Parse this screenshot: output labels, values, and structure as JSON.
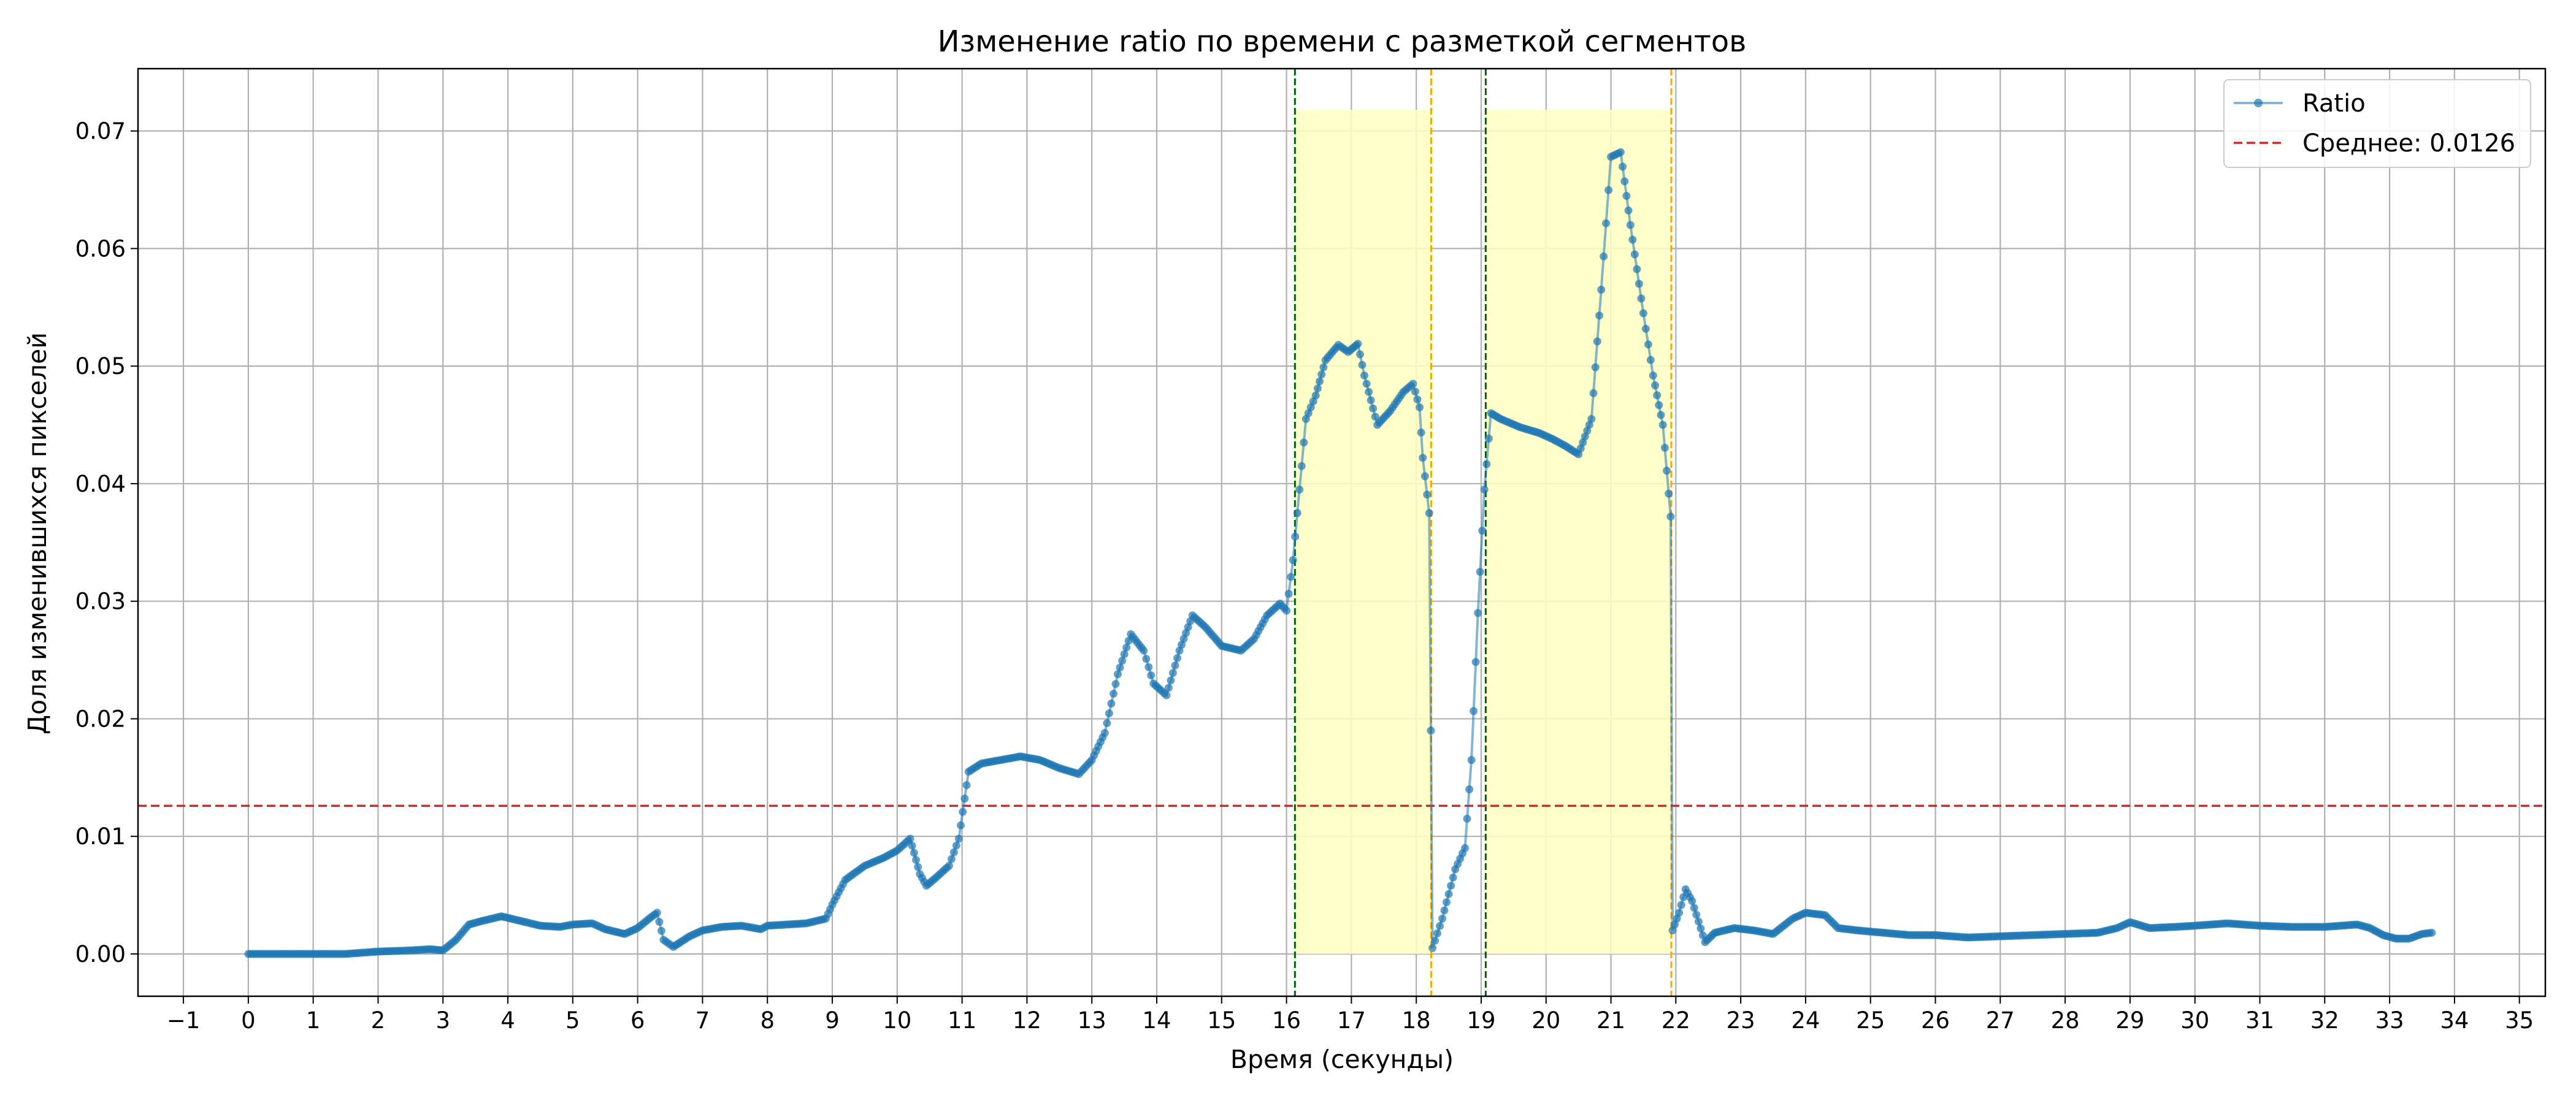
{
  "chart_data": {
    "type": "line",
    "title": "Изменение ratio по времени с разметкой сегментов",
    "xlabel": "Время (секунды)",
    "ylabel": "Доля изменившихся пикселей",
    "xlim": [
      -1.7,
      35.4
    ],
    "ylim": [
      -0.0036,
      0.0753
    ],
    "xticks": [
      -1,
      0,
      1,
      2,
      3,
      4,
      5,
      6,
      7,
      8,
      9,
      10,
      11,
      12,
      13,
      14,
      15,
      16,
      17,
      18,
      19,
      20,
      21,
      22,
      23,
      24,
      25,
      26,
      27,
      28,
      29,
      30,
      31,
      32,
      33,
      34,
      35
    ],
    "xtick_labels": [
      "−1",
      "0",
      "1",
      "2",
      "3",
      "4",
      "5",
      "6",
      "7",
      "8",
      "9",
      "10",
      "11",
      "12",
      "13",
      "14",
      "15",
      "16",
      "17",
      "18",
      "19",
      "20",
      "21",
      "22",
      "23",
      "24",
      "25",
      "26",
      "27",
      "28",
      "29",
      "30",
      "31",
      "32",
      "33",
      "34",
      "35"
    ],
    "yticks": [
      0.0,
      0.01,
      0.02,
      0.03,
      0.04,
      0.05,
      0.06,
      0.07
    ],
    "ytick_labels": [
      "0.00",
      "0.01",
      "0.02",
      "0.03",
      "0.04",
      "0.05",
      "0.06",
      "0.07"
    ],
    "grid": true,
    "legend_position": "top-right",
    "mean_line": {
      "name": "Среднее: 0.0126",
      "value": 0.0126,
      "color": "#d62728",
      "style": "dashed"
    },
    "segments": [
      {
        "start": 16.13,
        "end": 18.23,
        "ymax": 0.0718,
        "start_line_color": "#006400",
        "end_line_color": "#ffa500"
      },
      {
        "start": 19.07,
        "end": 21.93,
        "ymax": 0.0718,
        "start_line_color": "#006400",
        "end_line_color": "#ffa500"
      }
    ],
    "segment_fill_color": "#ffffc0",
    "series": [
      {
        "name": "Ratio",
        "color": "#1f77b4",
        "marker": "circle",
        "points": [
          [
            0.0,
            0.0
          ],
          [
            1.0,
            0.0
          ],
          [
            1.5,
            0.0
          ],
          [
            2.0,
            0.0002
          ],
          [
            2.5,
            0.0003
          ],
          [
            2.8,
            0.0004
          ],
          [
            3.0,
            0.0003
          ],
          [
            3.2,
            0.0012
          ],
          [
            3.4,
            0.0025
          ],
          [
            3.6,
            0.0028
          ],
          [
            3.9,
            0.0032
          ],
          [
            4.2,
            0.0028
          ],
          [
            4.5,
            0.0024
          ],
          [
            4.8,
            0.0023
          ],
          [
            5.0,
            0.0025
          ],
          [
            5.3,
            0.0026
          ],
          [
            5.5,
            0.0021
          ],
          [
            5.8,
            0.0017
          ],
          [
            6.0,
            0.0022
          ],
          [
            6.2,
            0.0031
          ],
          [
            6.3,
            0.0035
          ],
          [
            6.4,
            0.0012
          ],
          [
            6.55,
            0.0006
          ],
          [
            6.8,
            0.0015
          ],
          [
            7.0,
            0.002
          ],
          [
            7.3,
            0.0023
          ],
          [
            7.6,
            0.0024
          ],
          [
            7.9,
            0.0021
          ],
          [
            8.0,
            0.0024
          ],
          [
            8.3,
            0.0025
          ],
          [
            8.6,
            0.0026
          ],
          [
            8.9,
            0.003
          ],
          [
            9.0,
            0.0042
          ],
          [
            9.2,
            0.0063
          ],
          [
            9.5,
            0.0075
          ],
          [
            9.8,
            0.0082
          ],
          [
            10.0,
            0.0088
          ],
          [
            10.2,
            0.0098
          ],
          [
            10.35,
            0.0068
          ],
          [
            10.45,
            0.0058
          ],
          [
            10.6,
            0.0065
          ],
          [
            10.8,
            0.0075
          ],
          [
            10.95,
            0.0098
          ],
          [
            11.1,
            0.0155
          ],
          [
            11.3,
            0.0162
          ],
          [
            11.6,
            0.0165
          ],
          [
            11.9,
            0.0168
          ],
          [
            12.2,
            0.0165
          ],
          [
            12.5,
            0.0158
          ],
          [
            12.8,
            0.0153
          ],
          [
            13.0,
            0.0165
          ],
          [
            13.2,
            0.0188
          ],
          [
            13.4,
            0.0238
          ],
          [
            13.6,
            0.0272
          ],
          [
            13.8,
            0.0258
          ],
          [
            13.95,
            0.023
          ],
          [
            14.15,
            0.022
          ],
          [
            14.35,
            0.0258
          ],
          [
            14.55,
            0.0288
          ],
          [
            14.75,
            0.0278
          ],
          [
            15.0,
            0.0262
          ],
          [
            15.3,
            0.0258
          ],
          [
            15.5,
            0.0268
          ],
          [
            15.7,
            0.0288
          ],
          [
            15.9,
            0.0298
          ],
          [
            16.0,
            0.0292
          ],
          [
            16.1,
            0.0335
          ],
          [
            16.2,
            0.0395
          ],
          [
            16.3,
            0.0455
          ],
          [
            16.45,
            0.0475
          ],
          [
            16.6,
            0.0505
          ],
          [
            16.8,
            0.0518
          ],
          [
            16.95,
            0.0512
          ],
          [
            17.1,
            0.0519
          ],
          [
            17.2,
            0.0492
          ],
          [
            17.4,
            0.045
          ],
          [
            17.6,
            0.0462
          ],
          [
            17.8,
            0.0478
          ],
          [
            17.95,
            0.0485
          ],
          [
            18.05,
            0.0465
          ],
          [
            18.1,
            0.0422
          ],
          [
            18.2,
            0.0375
          ],
          [
            18.25,
            0.0005
          ],
          [
            18.4,
            0.003
          ],
          [
            18.6,
            0.0072
          ],
          [
            18.75,
            0.009
          ],
          [
            18.85,
            0.0165
          ],
          [
            18.95,
            0.029
          ],
          [
            19.05,
            0.0395
          ],
          [
            19.15,
            0.046
          ],
          [
            19.3,
            0.0455
          ],
          [
            19.6,
            0.0448
          ],
          [
            19.9,
            0.0443
          ],
          [
            20.1,
            0.0438
          ],
          [
            20.3,
            0.0432
          ],
          [
            20.5,
            0.0425
          ],
          [
            20.7,
            0.0455
          ],
          [
            20.85,
            0.0565
          ],
          [
            21.0,
            0.0678
          ],
          [
            21.15,
            0.0682
          ],
          [
            21.3,
            0.062
          ],
          [
            21.5,
            0.0545
          ],
          [
            21.65,
            0.0492
          ],
          [
            21.8,
            0.045
          ],
          [
            21.92,
            0.0372
          ],
          [
            21.95,
            0.002
          ],
          [
            22.05,
            0.0035
          ],
          [
            22.15,
            0.0055
          ],
          [
            22.25,
            0.0045
          ],
          [
            22.45,
            0.001
          ],
          [
            22.6,
            0.0018
          ],
          [
            22.9,
            0.0022
          ],
          [
            23.2,
            0.002
          ],
          [
            23.5,
            0.0017
          ],
          [
            23.8,
            0.003
          ],
          [
            24.0,
            0.0035
          ],
          [
            24.3,
            0.0033
          ],
          [
            24.5,
            0.0022
          ],
          [
            24.8,
            0.002
          ],
          [
            25.2,
            0.0018
          ],
          [
            25.6,
            0.0016
          ],
          [
            26.0,
            0.0016
          ],
          [
            26.5,
            0.0014
          ],
          [
            27.0,
            0.0015
          ],
          [
            27.5,
            0.0016
          ],
          [
            28.0,
            0.0017
          ],
          [
            28.5,
            0.0018
          ],
          [
            28.8,
            0.0022
          ],
          [
            29.0,
            0.0027
          ],
          [
            29.3,
            0.0022
          ],
          [
            29.7,
            0.0023
          ],
          [
            30.0,
            0.0024
          ],
          [
            30.5,
            0.0026
          ],
          [
            31.0,
            0.0024
          ],
          [
            31.5,
            0.0023
          ],
          [
            32.0,
            0.0023
          ],
          [
            32.5,
            0.0025
          ],
          [
            32.7,
            0.0022
          ],
          [
            32.9,
            0.0016
          ],
          [
            33.1,
            0.0013
          ],
          [
            33.3,
            0.0013
          ],
          [
            33.5,
            0.0017
          ],
          [
            33.65,
            0.0018
          ]
        ]
      }
    ]
  }
}
